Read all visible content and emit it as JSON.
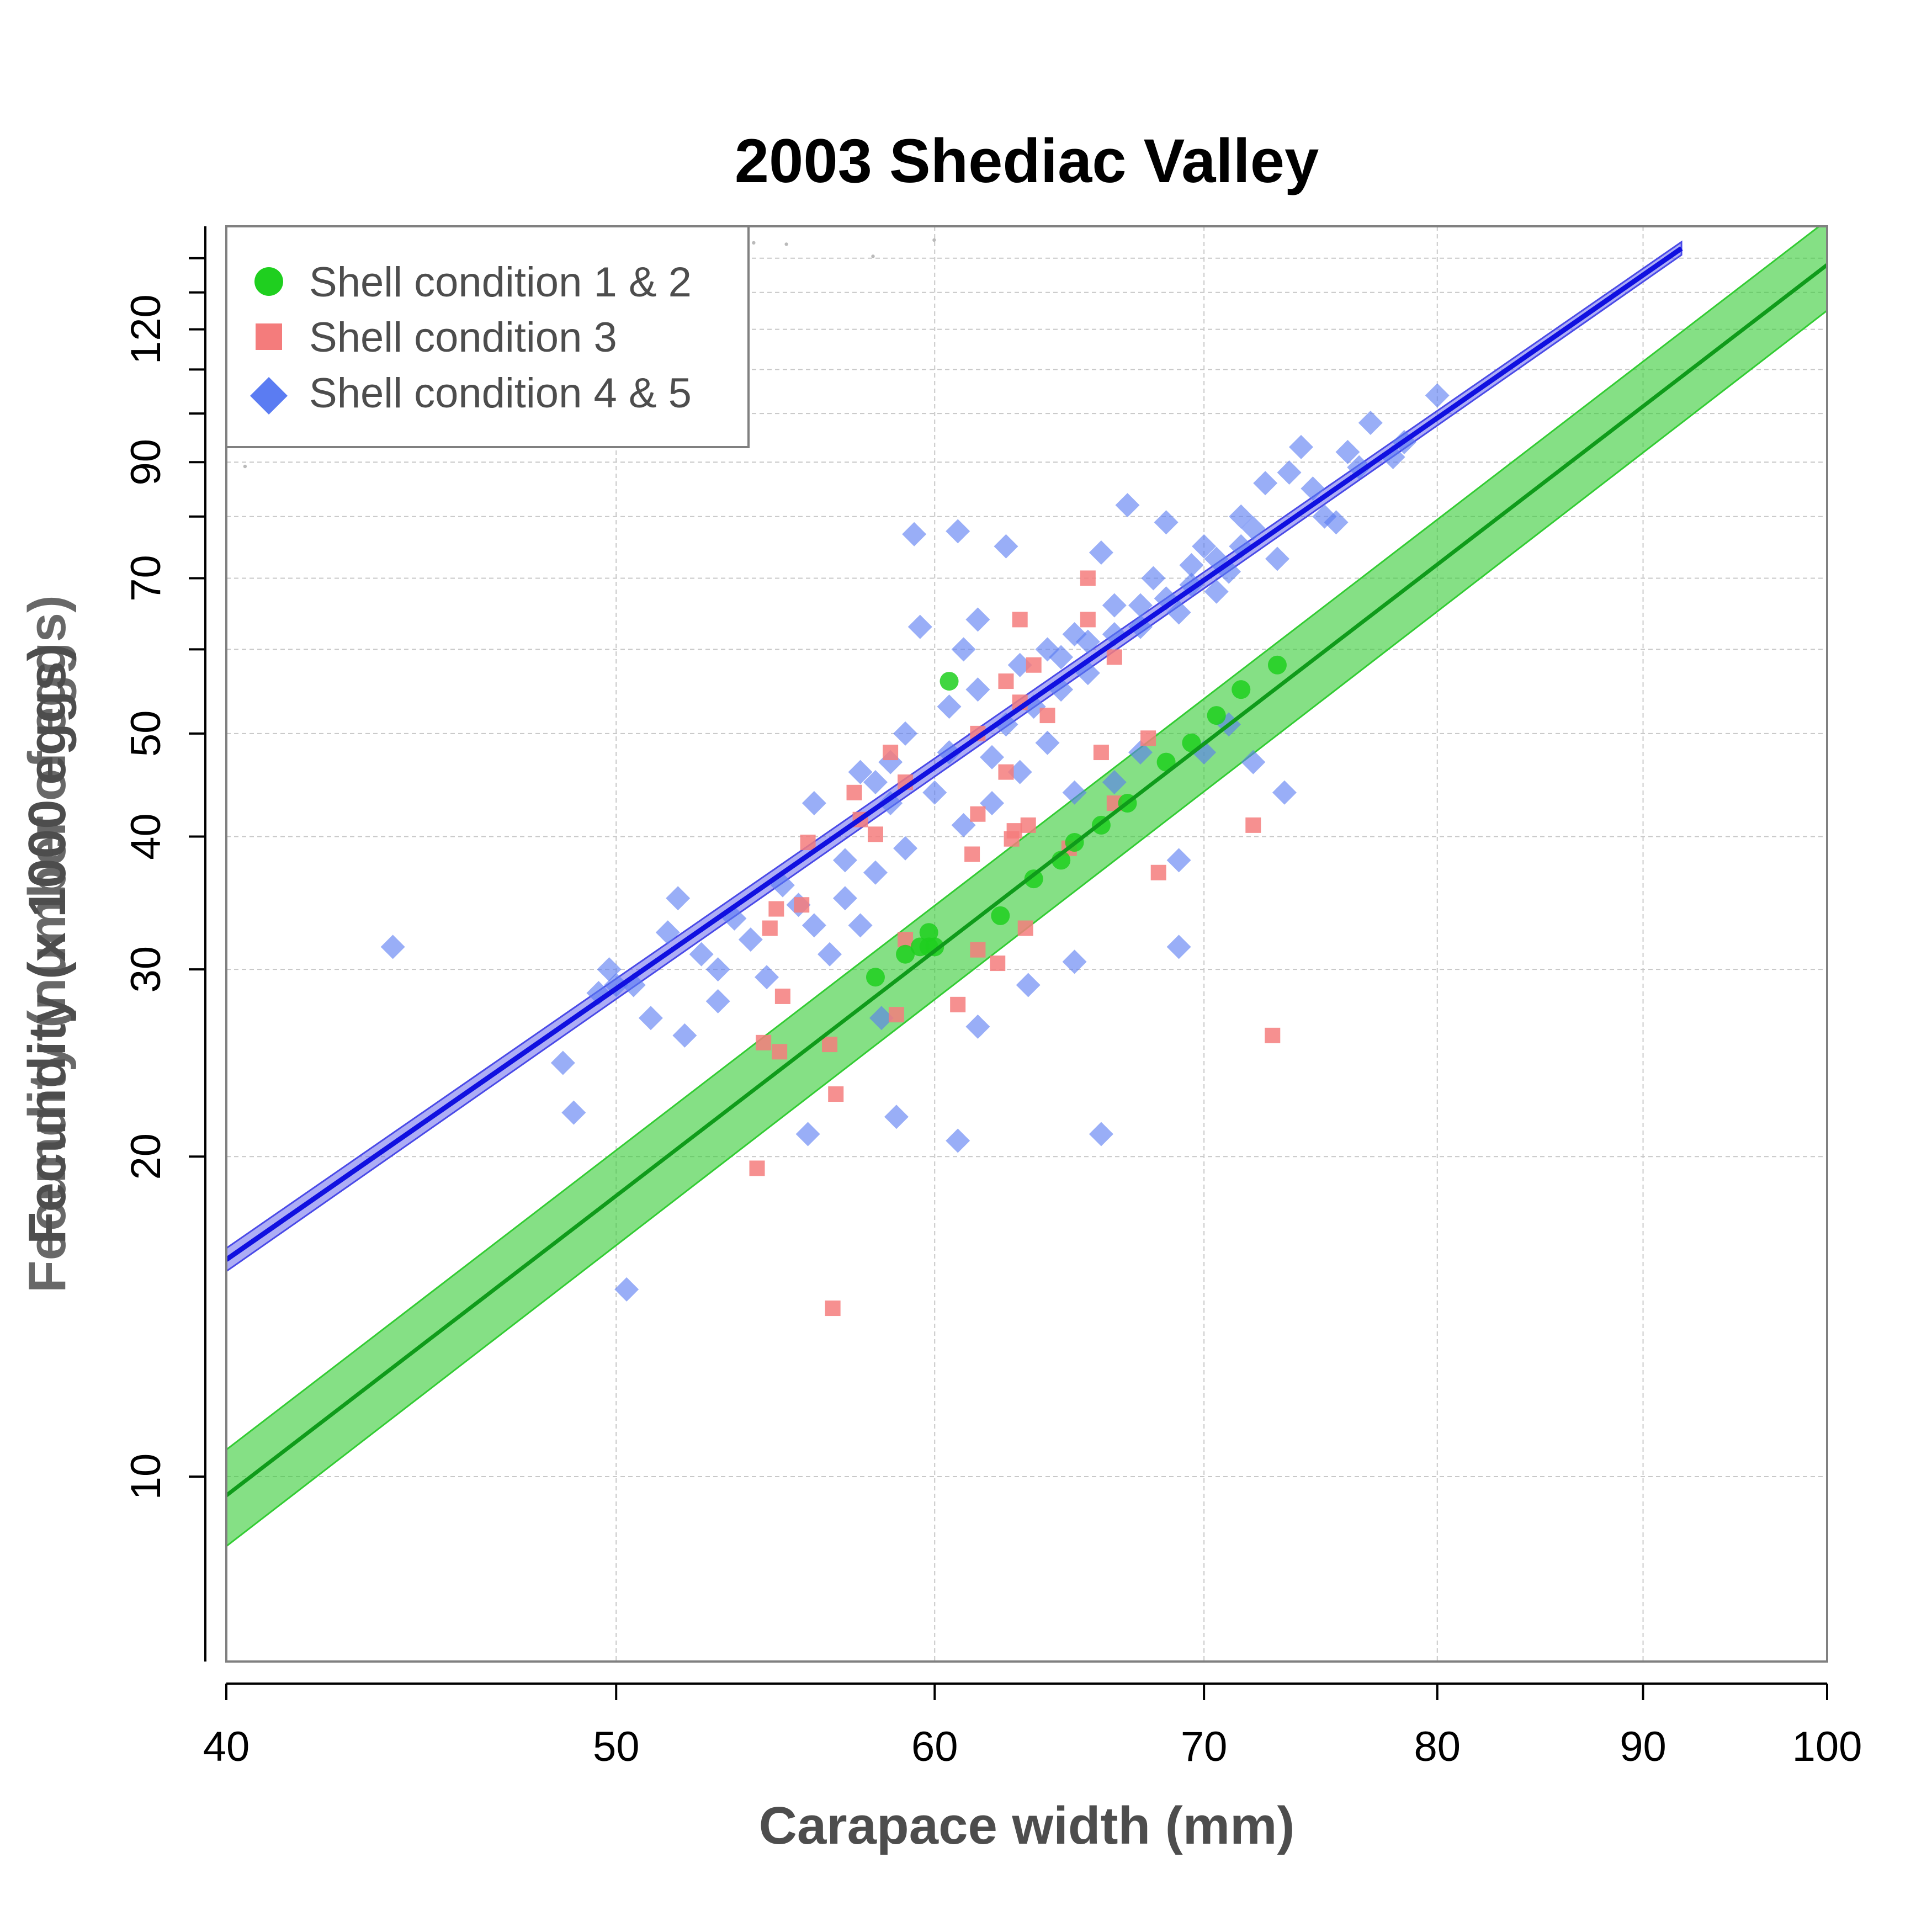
{
  "chart_data": {
    "type": "scatter",
    "title": "2003 Shediac Valley",
    "xlabel": "Carapace width (mm)",
    "ylabel": "Fecundity (x 1000 eggs)",
    "ylabel_overlap": "Fecundity (number of eggs)",
    "x_scale": "log",
    "y_scale": "log",
    "xlim": [
      40,
      100
    ],
    "ylim": [
      6.7,
      150
    ],
    "x_ticks": [
      40,
      50,
      60,
      70,
      80,
      90,
      100
    ],
    "y_ticks": [
      10,
      20,
      30,
      40,
      50,
      70,
      90,
      120
    ],
    "y_minor_ticks": [
      60,
      80,
      100,
      110,
      130,
      140
    ],
    "grid": true,
    "legend_position": "top-left",
    "colors": {
      "background_points": "#8c8c8c",
      "sc12": "#1fcf1f",
      "sc12_band": "#33cc33",
      "sc12_line": "#0f9b1a",
      "sc3": "#f47c7c",
      "sc45": "#5b7cf2",
      "sc45_line": "#1010e0",
      "sc45_band": "#4a4ae8"
    },
    "series": [
      {
        "name": "Shell condition 1 & 2",
        "marker": "circle",
        "color": "#1fcf1f",
        "points": [
          [
            60.5,
            56
          ],
          [
            58,
            29.5
          ],
          [
            59.8,
            31.5
          ],
          [
            59,
            31
          ],
          [
            60,
            31.5
          ],
          [
            59.5,
            31.5
          ],
          [
            62.3,
            33.7
          ],
          [
            63.5,
            36.5
          ],
          [
            65,
            39.5
          ],
          [
            64.5,
            38
          ],
          [
            67,
            43
          ],
          [
            69.5,
            49
          ],
          [
            71.5,
            55
          ],
          [
            70.5,
            52
          ],
          [
            66,
            41
          ],
          [
            68.5,
            47
          ],
          [
            59.8,
            32.5
          ],
          [
            73,
            58
          ]
        ],
        "fit": {
          "x": [
            40,
            100
          ],
          "y": [
            9.6,
            138
          ]
        },
        "band": {
          "lower_at_x0": 8.6,
          "upper_at_x0": 10.6,
          "lower_at_x1": 125,
          "upper_at_x1": 152
        }
      },
      {
        "name": "Shell condition 3",
        "marker": "square",
        "color": "#f47c7c",
        "points": [
          [
            65.5,
            70
          ],
          [
            63,
            64
          ],
          [
            65.5,
            64
          ],
          [
            66.5,
            59
          ],
          [
            63.5,
            58
          ],
          [
            62.5,
            56
          ],
          [
            63,
            53.5
          ],
          [
            64,
            52
          ],
          [
            61.5,
            50
          ],
          [
            58.5,
            48
          ],
          [
            59,
            45
          ],
          [
            62.5,
            46
          ],
          [
            66,
            48
          ],
          [
            67.8,
            49.5
          ],
          [
            57.3,
            44
          ],
          [
            55.8,
            39.5
          ],
          [
            57.5,
            41.5
          ],
          [
            58,
            40.2
          ],
          [
            61.5,
            42
          ],
          [
            62.8,
            40.5
          ],
          [
            63.3,
            41
          ],
          [
            62.7,
            39.8
          ],
          [
            61.3,
            38.5
          ],
          [
            64.8,
            39
          ],
          [
            66.5,
            43
          ],
          [
            68.2,
            37
          ],
          [
            72,
            41
          ],
          [
            54.8,
            34.2
          ],
          [
            54.6,
            32.8
          ],
          [
            55.6,
            34.5
          ],
          [
            63.2,
            32.8
          ],
          [
            59,
            32
          ],
          [
            61.5,
            31.3
          ],
          [
            62.2,
            30.4
          ],
          [
            55,
            28.3
          ],
          [
            60.8,
            27.8
          ],
          [
            58.7,
            27.2
          ],
          [
            54.4,
            25.6
          ],
          [
            54.9,
            25.1
          ],
          [
            56.5,
            25.5
          ],
          [
            56.7,
            22.9
          ],
          [
            54.2,
            19.5
          ],
          [
            56.6,
            14.4
          ],
          [
            72.8,
            26
          ]
        ]
      },
      {
        "name": "Shell condition 4 & 5",
        "marker": "diamond",
        "color": "#5b7cf2",
        "points": [
          [
            44,
            31.5
          ],
          [
            48.5,
            24.5
          ],
          [
            48.8,
            22
          ],
          [
            50.3,
            15
          ],
          [
            51.8,
            35
          ],
          [
            50,
            29
          ],
          [
            49.5,
            28.5
          ],
          [
            51,
            27
          ],
          [
            53,
            30
          ],
          [
            55,
            36
          ],
          [
            56,
            43
          ],
          [
            57,
            38
          ],
          [
            58,
            45
          ],
          [
            58.5,
            43
          ],
          [
            59.3,
            77
          ],
          [
            59.5,
            63
          ],
          [
            60.8,
            77.5
          ],
          [
            60.5,
            48
          ],
          [
            61,
            60
          ],
          [
            61.5,
            64
          ],
          [
            62.5,
            75
          ],
          [
            63,
            58
          ],
          [
            64,
            60
          ],
          [
            64.5,
            55
          ],
          [
            65,
            62
          ],
          [
            65.5,
            57
          ],
          [
            66,
            74
          ],
          [
            66.5,
            66
          ],
          [
            67,
            82
          ],
          [
            67.5,
            63
          ],
          [
            68,
            70
          ],
          [
            68.5,
            79
          ],
          [
            69,
            65
          ],
          [
            69.5,
            72
          ],
          [
            70,
            75
          ],
          [
            70.5,
            68
          ],
          [
            71,
            71
          ],
          [
            71.5,
            80
          ],
          [
            72,
            78
          ],
          [
            72.5,
            86
          ],
          [
            73,
            73
          ],
          [
            73.5,
            88
          ],
          [
            74,
            93
          ],
          [
            74.5,
            85
          ],
          [
            75,
            80
          ],
          [
            75.5,
            79
          ],
          [
            76,
            92
          ],
          [
            76.5,
            89
          ],
          [
            77,
            98
          ],
          [
            78,
            91
          ],
          [
            78.5,
            94
          ],
          [
            80,
            104
          ],
          [
            62.5,
            51
          ],
          [
            63,
            46
          ],
          [
            64,
            49
          ],
          [
            65,
            44
          ],
          [
            66.5,
            45
          ],
          [
            67.5,
            48
          ],
          [
            69,
            38
          ],
          [
            69,
            31.5
          ],
          [
            66,
            21
          ],
          [
            65,
            30.5
          ],
          [
            63.3,
            29
          ],
          [
            61.5,
            26.5
          ],
          [
            60.8,
            20.7
          ],
          [
            58.7,
            21.8
          ],
          [
            55.8,
            21
          ],
          [
            58.2,
            27
          ],
          [
            57.5,
            33
          ],
          [
            56.5,
            31
          ],
          [
            54.5,
            29.5
          ],
          [
            53.5,
            33.5
          ],
          [
            52.5,
            31
          ],
          [
            51.5,
            32.5
          ],
          [
            50.5,
            29
          ],
          [
            49.8,
            30
          ],
          [
            72,
            47
          ],
          [
            70,
            48
          ],
          [
            73.3,
            44
          ],
          [
            71,
            51
          ],
          [
            60,
            44
          ],
          [
            59,
            39
          ],
          [
            61,
            41
          ],
          [
            62,
            43
          ],
          [
            58,
            37
          ],
          [
            57,
            35
          ],
          [
            56,
            33
          ],
          [
            55.5,
            34.5
          ],
          [
            54,
            32
          ],
          [
            53,
            28
          ],
          [
            52,
            26
          ],
          [
            60.5,
            53
          ],
          [
            61.5,
            55
          ],
          [
            62,
            47.5
          ],
          [
            63.5,
            53
          ],
          [
            64.5,
            59
          ],
          [
            65.5,
            61
          ],
          [
            66.5,
            62
          ],
          [
            67.5,
            66
          ],
          [
            68.5,
            67
          ],
          [
            69.5,
            69
          ],
          [
            70.5,
            73
          ],
          [
            71.5,
            75
          ],
          [
            59,
            50
          ],
          [
            58.5,
            47
          ],
          [
            57.5,
            46
          ]
        ],
        "fit": {
          "x": [
            40,
            92
          ],
          "y": [
            16,
            143
          ]
        },
        "band": {
          "lower_at_x0": 15.6,
          "upper_at_x0": 16.4,
          "lower_at_x1": 141,
          "upper_at_x1": 145
        }
      }
    ],
    "background_points": {
      "label": "",
      "count": 4200,
      "trend": {
        "a": -4.45,
        "b": 2.5
      },
      "spread": 0.2
    }
  }
}
